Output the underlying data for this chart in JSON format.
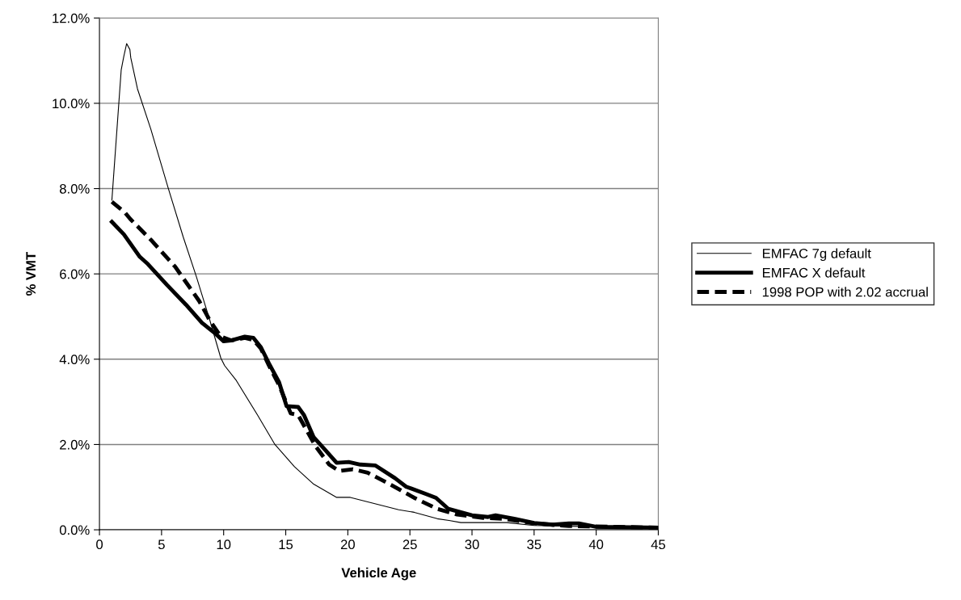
{
  "chart_data": {
    "type": "line",
    "xlabel": "Vehicle Age",
    "ylabel": "% VMT",
    "xlim": [
      0,
      45
    ],
    "xticks": [
      0,
      5,
      10,
      15,
      20,
      25,
      30,
      35,
      40,
      45
    ],
    "ylim": [
      0,
      12
    ],
    "yticks": [
      {
        "value": 0,
        "label": "0.0%"
      },
      {
        "value": 2,
        "label": "2.0%"
      },
      {
        "value": 4,
        "label": "4.0%"
      },
      {
        "value": 6,
        "label": "6.0%"
      },
      {
        "value": 8,
        "label": "8.0%"
      },
      {
        "value": 10,
        "label": "10.0%"
      },
      {
        "value": 12,
        "label": "12.0%"
      }
    ],
    "grid": "y",
    "legend": "right",
    "marker": "none",
    "series": [
      {
        "name": "EMFAC 7g default",
        "color": "#000000",
        "line_style": "solid",
        "x": [
          1.0,
          1.75,
          1.96,
          2.19,
          2.45,
          2.52,
          3.06,
          4.14,
          5.55,
          6.74,
          7.82,
          8.9,
          9.77,
          10.08,
          11.02,
          12.73,
          14.13,
          15.7,
          17.25,
          19.1,
          20.2,
          24.1,
          25.35,
          27.2,
          28.15,
          29.1,
          32.8,
          35.0,
          45.0
        ],
        "values": [
          7.73,
          10.78,
          11.1,
          11.4,
          11.26,
          11.07,
          10.34,
          9.39,
          8.0,
          6.87,
          5.92,
          4.9,
          4.03,
          3.85,
          3.5,
          2.69,
          2.0,
          1.48,
          1.07,
          0.76,
          0.76,
          0.47,
          0.41,
          0.26,
          0.22,
          0.17,
          0.17,
          0.1,
          0.04
        ]
      },
      {
        "name": "EMFAC X default",
        "color": "#000000",
        "line_style": "solid",
        "x": [
          1.0,
          1.96,
          3.25,
          3.9,
          5.44,
          6.96,
          8.26,
          9.34,
          10.0,
          10.6,
          11.7,
          12.4,
          13.0,
          13.65,
          14.45,
          15.07,
          16.0,
          16.47,
          17.25,
          18.19,
          19.1,
          20.07,
          21.0,
          22.2,
          23.8,
          24.7,
          26.3,
          27.1,
          28.1,
          30.0,
          31.3,
          31.9,
          33.4,
          35.0,
          36.5,
          37.8,
          38.6,
          40.0,
          45.0
        ],
        "values": [
          7.22,
          6.93,
          6.4,
          6.23,
          5.74,
          5.28,
          4.85,
          4.6,
          4.42,
          4.44,
          4.53,
          4.5,
          4.28,
          3.9,
          3.47,
          2.9,
          2.88,
          2.69,
          2.17,
          1.87,
          1.57,
          1.59,
          1.53,
          1.51,
          1.21,
          1.01,
          0.84,
          0.75,
          0.49,
          0.34,
          0.3,
          0.34,
          0.26,
          0.16,
          0.12,
          0.15,
          0.15,
          0.07,
          0.05
        ]
      },
      {
        "name": "1998 POP with 2.02 accrual",
        "color": "#000000",
        "line_style": "dashed",
        "x": [
          1.0,
          2.05,
          2.5,
          4.14,
          6.09,
          8.04,
          8.9,
          9.77,
          10.6,
          11.7,
          12.4,
          13.0,
          13.65,
          14.45,
          15.4,
          16.0,
          17.4,
          18.5,
          19.3,
          20.4,
          21.6,
          23.5,
          25.35,
          27.2,
          28.8,
          30.9,
          32.5,
          35.0,
          37.8,
          45.0
        ],
        "values": [
          7.69,
          7.44,
          7.28,
          6.8,
          6.17,
          5.36,
          4.9,
          4.53,
          4.44,
          4.5,
          4.45,
          4.25,
          3.85,
          3.4,
          2.73,
          2.69,
          1.96,
          1.53,
          1.38,
          1.42,
          1.34,
          1.05,
          0.75,
          0.49,
          0.36,
          0.28,
          0.26,
          0.15,
          0.09,
          0.05
        ]
      }
    ]
  }
}
